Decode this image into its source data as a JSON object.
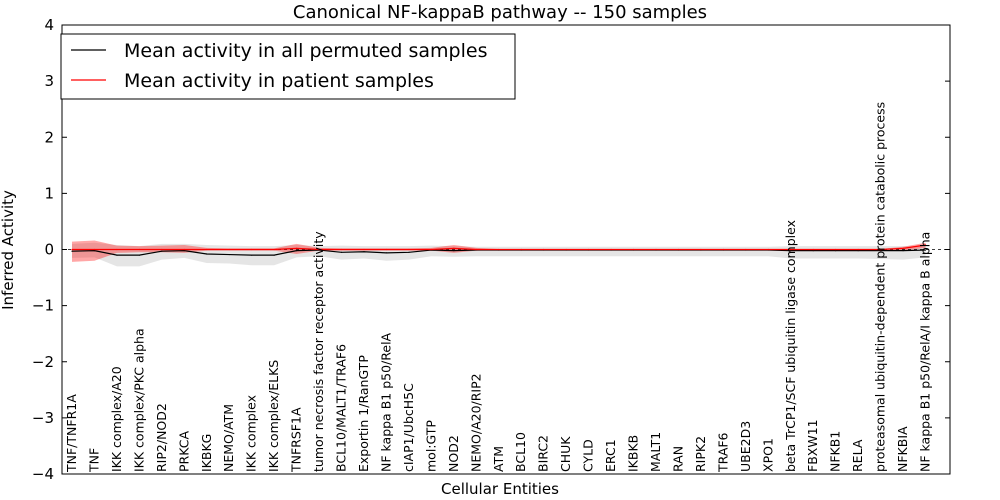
{
  "chart_data": {
    "type": "line",
    "title": "Canonical NF-kappaB pathway -- 150 samples",
    "xlabel": "Cellular Entities",
    "ylabel": "Inferred Activity",
    "ylim": [
      -4,
      4
    ],
    "yticks": [
      -4,
      -3,
      -2,
      -1,
      0,
      1,
      2,
      3,
      4
    ],
    "ytick_labels": [
      "−4",
      "−3",
      "−2",
      "−1",
      "0",
      "1",
      "2",
      "3",
      "4"
    ],
    "grid": false,
    "legend_position": "top-left",
    "categories": [
      "TNF/TNFR1A",
      "TNF",
      "IKK complex/A20",
      "IKK complex/PKC alpha",
      "RIP2/NOD2",
      "PRKCA",
      "IKBKG",
      "NEMO/ATM",
      "IKK complex",
      "IKK complex/ELKS",
      "TNFRSF1A",
      "tumor necrosis factor receptor activity",
      "BCL10/MALT1/TRAF6",
      "Exportin 1/RanGTP",
      "NF kappa B1 p50/RelA",
      "cIAP1/UbcH5C",
      "mol:GTP",
      "NOD2",
      "NEMO/A20/RIP2",
      "ATM",
      "BCL10",
      "BIRC2",
      "CHUK",
      "CYLD",
      "ERC1",
      "IKBKB",
      "MALT1",
      "RAN",
      "RIPK2",
      "TRAF6",
      "UBE2D3",
      "XPO1",
      "beta TrCP1/SCF ubiquitin ligase complex",
      "FBXW11",
      "NFKB1",
      "RELA",
      "proteasomal ubiquitin-dependent protein catabolic process",
      "NFKBIA",
      "NF kappa B1 p50/RelA/I kappa B alpha"
    ],
    "series": [
      {
        "name": "Mean activity in all permuted samples",
        "color": "#000000",
        "values": [
          -0.03,
          -0.02,
          -0.1,
          -0.1,
          -0.03,
          -0.02,
          -0.08,
          -0.09,
          -0.1,
          -0.1,
          -0.02,
          -0.01,
          -0.05,
          -0.04,
          -0.06,
          -0.05,
          -0.01,
          -0.02,
          -0.01,
          -0.01,
          -0.01,
          -0.01,
          -0.01,
          -0.01,
          -0.01,
          -0.01,
          -0.01,
          -0.01,
          -0.01,
          -0.01,
          -0.01,
          -0.01,
          -0.02,
          -0.02,
          -0.02,
          -0.02,
          -0.02,
          -0.02,
          -0.01
        ],
        "band_lower": [
          -0.15,
          -0.14,
          -0.3,
          -0.3,
          -0.18,
          -0.15,
          -0.24,
          -0.25,
          -0.28,
          -0.28,
          -0.14,
          -0.12,
          -0.18,
          -0.16,
          -0.2,
          -0.18,
          -0.12,
          -0.13,
          -0.12,
          -0.12,
          -0.12,
          -0.12,
          -0.12,
          -0.12,
          -0.12,
          -0.12,
          -0.12,
          -0.12,
          -0.12,
          -0.12,
          -0.12,
          -0.12,
          -0.16,
          -0.16,
          -0.16,
          -0.16,
          -0.17,
          -0.18,
          -0.14
        ],
        "band_upper": [
          0.1,
          0.12,
          0.08,
          0.06,
          0.1,
          0.1,
          0.08,
          0.07,
          0.06,
          0.06,
          0.08,
          0.06,
          0.07,
          0.06,
          0.06,
          0.06,
          0.07,
          0.06,
          0.05,
          0.05,
          0.05,
          0.05,
          0.05,
          0.05,
          0.05,
          0.05,
          0.05,
          0.05,
          0.05,
          0.05,
          0.05,
          0.05,
          0.06,
          0.06,
          0.06,
          0.06,
          0.06,
          0.06,
          0.05
        ]
      },
      {
        "name": "Mean activity in patient samples",
        "color": "#ff0000",
        "values": [
          0.0,
          0.0,
          0.0,
          0.0,
          0.0,
          0.0,
          0.0,
          0.0,
          0.0,
          0.0,
          0.02,
          0.0,
          0.0,
          0.0,
          0.0,
          0.0,
          0.0,
          0.02,
          0.0,
          0.0,
          0.0,
          0.0,
          0.0,
          0.0,
          0.0,
          0.0,
          0.0,
          0.0,
          0.0,
          0.0,
          0.0,
          0.0,
          0.0,
          0.0,
          0.0,
          0.0,
          0.0,
          0.02,
          0.08
        ],
        "band_lower": [
          -0.22,
          -0.2,
          -0.06,
          -0.05,
          -0.05,
          -0.06,
          -0.02,
          -0.02,
          -0.02,
          -0.02,
          -0.08,
          -0.02,
          -0.02,
          -0.02,
          -0.02,
          -0.02,
          -0.02,
          -0.06,
          -0.02,
          -0.01,
          -0.01,
          -0.01,
          -0.01,
          -0.01,
          -0.01,
          -0.01,
          -0.01,
          -0.01,
          -0.01,
          -0.01,
          -0.01,
          -0.01,
          -0.01,
          -0.01,
          -0.01,
          -0.01,
          -0.01,
          -0.02,
          0.03
        ],
        "band_upper": [
          0.14,
          0.16,
          0.07,
          0.06,
          0.07,
          0.08,
          0.03,
          0.02,
          0.02,
          0.02,
          0.1,
          0.03,
          0.02,
          0.02,
          0.02,
          0.02,
          0.03,
          0.08,
          0.03,
          0.01,
          0.01,
          0.01,
          0.01,
          0.01,
          0.01,
          0.01,
          0.01,
          0.01,
          0.01,
          0.01,
          0.01,
          0.01,
          0.01,
          0.01,
          0.01,
          0.01,
          0.01,
          0.05,
          0.12
        ]
      }
    ]
  }
}
